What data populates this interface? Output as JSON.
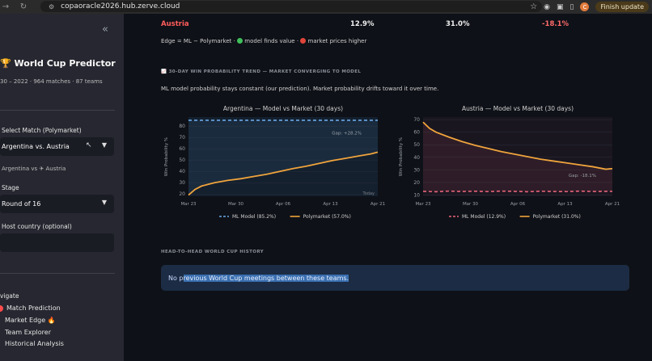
{
  "browser": {
    "url": "copaoracle2026.hub.zerve.cloud",
    "profile_initial": "C",
    "finish_label": "Finish update"
  },
  "sidebar": {
    "collapse_icon": "«",
    "title": "World Cup Predictor",
    "subtitle": "30 – 2022 · 964 matches · 87 teams",
    "select_match_label": "Select Match (Polymarket)",
    "select_match_value": "Argentina vs. Austria",
    "pair_line_left": "Argentina vs",
    "pair_line_right": "Austria",
    "stage_label": "Stage",
    "stage_value": "Round of 16",
    "host_label": "Host country (optional)",
    "host_value": "",
    "navigate_label": "vigate",
    "nav": [
      {
        "label": "Match Prediction",
        "active": true
      },
      {
        "label": "Market Edge 🔥",
        "active": false
      },
      {
        "label": "Team Explorer",
        "active": false
      },
      {
        "label": "Historical Analysis",
        "active": false
      }
    ]
  },
  "main": {
    "top_row": {
      "team": "Austria",
      "ml": "12.9%",
      "market": "31.0%",
      "edge": "-18.1%"
    },
    "edge_note_prefix": "Edge = ML − Polymarket ·",
    "edge_note_mid": "model finds value ·",
    "edge_note_suffix": "market prices higher",
    "trend_heading": "30-DAY WIN PROBABILITY TREND — MARKET CONVERGING TO MODEL",
    "trend_caption": "ML model probability stays constant (our prediction). Market probability drifts toward it over time.",
    "h2h_heading": "HEAD-TO-HEAD WORLD CUP HISTORY",
    "h2h_prefix": "No p",
    "h2h_highlight": "revious World Cup meetings between these teams."
  },
  "chart_data": [
    {
      "type": "line",
      "title": "Argentina — Model vs Market (30 days)",
      "ylabel": "Win Probability %",
      "x_ticks": [
        "Mar 23",
        "Mar 30",
        "Apr 06",
        "Apr 13",
        "Apr 21"
      ],
      "y_ticks": [
        20,
        30,
        40,
        50,
        60,
        70,
        80
      ],
      "ylim": [
        18,
        88
      ],
      "annotation": "Gap: +28.2%",
      "annotation_extra": "Today",
      "series": [
        {
          "name": "ML Model (85.2%)",
          "style": "dashed",
          "color": "#6aa8e6",
          "x": [
            0,
            29
          ],
          "values": [
            85.2,
            85.2
          ]
        },
        {
          "name": "Polymarket (57.0%)",
          "style": "solid",
          "color": "#f0a43c",
          "x": [
            0,
            1,
            2,
            3,
            4,
            6,
            8,
            10,
            12,
            14,
            16,
            18,
            20,
            22,
            24,
            26,
            28,
            29
          ],
          "values": [
            19,
            24,
            27,
            28.5,
            30,
            32,
            33.5,
            35.5,
            37.5,
            40,
            42.5,
            44.5,
            47,
            49.5,
            51.5,
            53.5,
            55.5,
            57
          ]
        }
      ]
    },
    {
      "type": "line",
      "title": "Austria — Model vs Market (30 days)",
      "ylabel": "Win Probability %",
      "x_ticks": [
        "Mar 23",
        "Mar 30",
        "Apr 06",
        "Apr 13",
        "Apr 21"
      ],
      "y_ticks": [
        10,
        20,
        30,
        40,
        50,
        60,
        70
      ],
      "ylim": [
        9,
        72
      ],
      "annotation": "Gap: -18.1%",
      "series": [
        {
          "name": "ML Model (12.9%)",
          "style": "dashed",
          "color": "#e8647a",
          "x": [
            0,
            2,
            4,
            6,
            8,
            10,
            12,
            14,
            16,
            18,
            20,
            22,
            24,
            26,
            28,
            29
          ],
          "values": [
            12.9,
            12.6,
            13.1,
            12.8,
            13.0,
            12.7,
            13.1,
            12.9,
            12.6,
            13.0,
            12.8,
            12.7,
            13.1,
            12.8,
            12.9,
            12.9
          ]
        },
        {
          "name": "Polymarket (31.0%)",
          "style": "solid",
          "color": "#f0a43c",
          "x": [
            0,
            1,
            2,
            4,
            6,
            8,
            10,
            12,
            14,
            16,
            18,
            20,
            22,
            24,
            26,
            28,
            29
          ],
          "values": [
            68,
            63,
            60,
            56,
            52.5,
            49.5,
            47,
            44.5,
            42.5,
            40.5,
            38.5,
            37,
            35.5,
            34,
            32.5,
            30.5,
            31
          ]
        }
      ]
    }
  ],
  "colors": {
    "sidebar_bg": "#262730",
    "main_bg": "#0e1117",
    "positive": "#f0f0f0",
    "negative": "#ff6b6b",
    "team_red": "#ff5c5c",
    "green_dot": "#3fbf5a",
    "red_dot": "#e0453a",
    "info_bg": "#1c2c44"
  }
}
